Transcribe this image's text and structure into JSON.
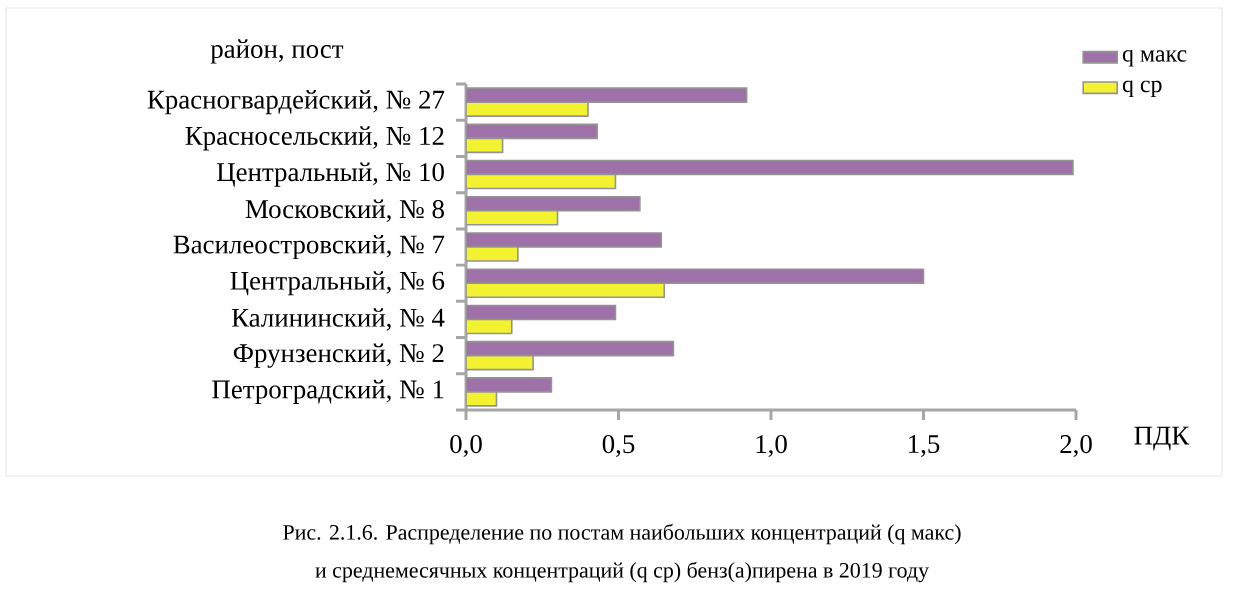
{
  "chart_data": {
    "type": "bar",
    "orientation": "horizontal",
    "ylabel": "район, пост",
    "xlabel": "ПДК",
    "categories": [
      "Красногвардейский, № 27",
      "Красносельский, № 12",
      "Центральный, № 10",
      "Московский, № 8",
      "Василеостровский, № 7",
      "Центральный, № 6",
      "Калининский, № 4",
      "Фрунзенский, № 2",
      "Петроградский, № 1"
    ],
    "series": [
      {
        "name": "q макс",
        "color": "#9e72a8",
        "values": [
          0.92,
          0.43,
          1.99,
          0.57,
          0.64,
          1.5,
          0.49,
          0.68,
          0.28
        ]
      },
      {
        "name": "q ср",
        "color": "#f2f230",
        "values": [
          0.4,
          0.12,
          0.49,
          0.3,
          0.17,
          0.65,
          0.15,
          0.22,
          0.1
        ]
      }
    ],
    "xlim": [
      0,
      2.0
    ],
    "xticks": [
      {
        "value": 0,
        "label": "0,0"
      },
      {
        "value": 0.5,
        "label": "0,5"
      },
      {
        "value": 1.0,
        "label": "1,0"
      },
      {
        "value": 1.5,
        "label": "1,5"
      },
      {
        "value": 2.0,
        "label": "2,0"
      }
    ],
    "legend": "top right",
    "annotations": [
      "Рис. 2.1.6. Распределение по постам наибольших концентраций (q макс)",
      "и среднемесячных концентраций (q ср) бенз(а)пирена в 2019 году"
    ]
  }
}
